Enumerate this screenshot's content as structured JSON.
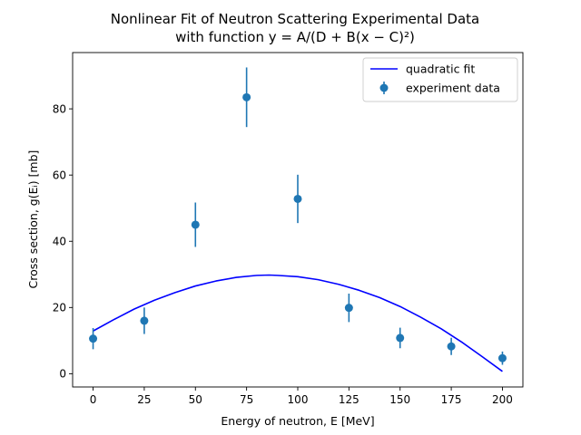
{
  "chart_data": {
    "type": "scatter",
    "title_lines": [
      "Nonlinear Fit of Neutron Scattering Experimental Data",
      "with function  y = A/(D + B(x − C)²)"
    ],
    "xlabel": "Energy of neutron, E [MeV]",
    "ylabel": "Cross section, g(Eᵢ) [mb]",
    "xlim": [
      -10,
      210
    ],
    "ylim": [
      -4,
      97
    ],
    "xticks": [
      0,
      25,
      50,
      75,
      100,
      125,
      150,
      175,
      200
    ],
    "yticks": [
      0,
      20,
      40,
      60,
      80
    ],
    "legend_position": "top-right",
    "series": [
      {
        "name": "experiment data",
        "kind": "errorbar",
        "color": "#1f77b4",
        "x": [
          0,
          25,
          50,
          75,
          100,
          125,
          150,
          175,
          200
        ],
        "y": [
          10.6,
          16.0,
          45.0,
          83.5,
          52.8,
          19.9,
          10.8,
          8.25,
          4.7
        ],
        "yerr": [
          3.2,
          4.0,
          6.7,
          9.0,
          7.3,
          4.3,
          3.1,
          2.6,
          2.0
        ]
      },
      {
        "name": "quadratic fit",
        "kind": "line",
        "color": "#0000ff",
        "x": [
          0,
          10,
          20,
          30,
          40,
          50,
          60,
          70,
          80,
          86,
          90,
          100,
          110,
          120,
          130,
          140,
          150,
          160,
          170,
          180,
          190,
          200
        ],
        "y": [
          12.9,
          16.3,
          19.5,
          22.2,
          24.5,
          26.5,
          28.0,
          29.1,
          29.7,
          29.8,
          29.7,
          29.3,
          28.4,
          27.0,
          25.2,
          23.0,
          20.3,
          17.1,
          13.6,
          9.6,
          5.2,
          0.7
        ]
      }
    ]
  }
}
